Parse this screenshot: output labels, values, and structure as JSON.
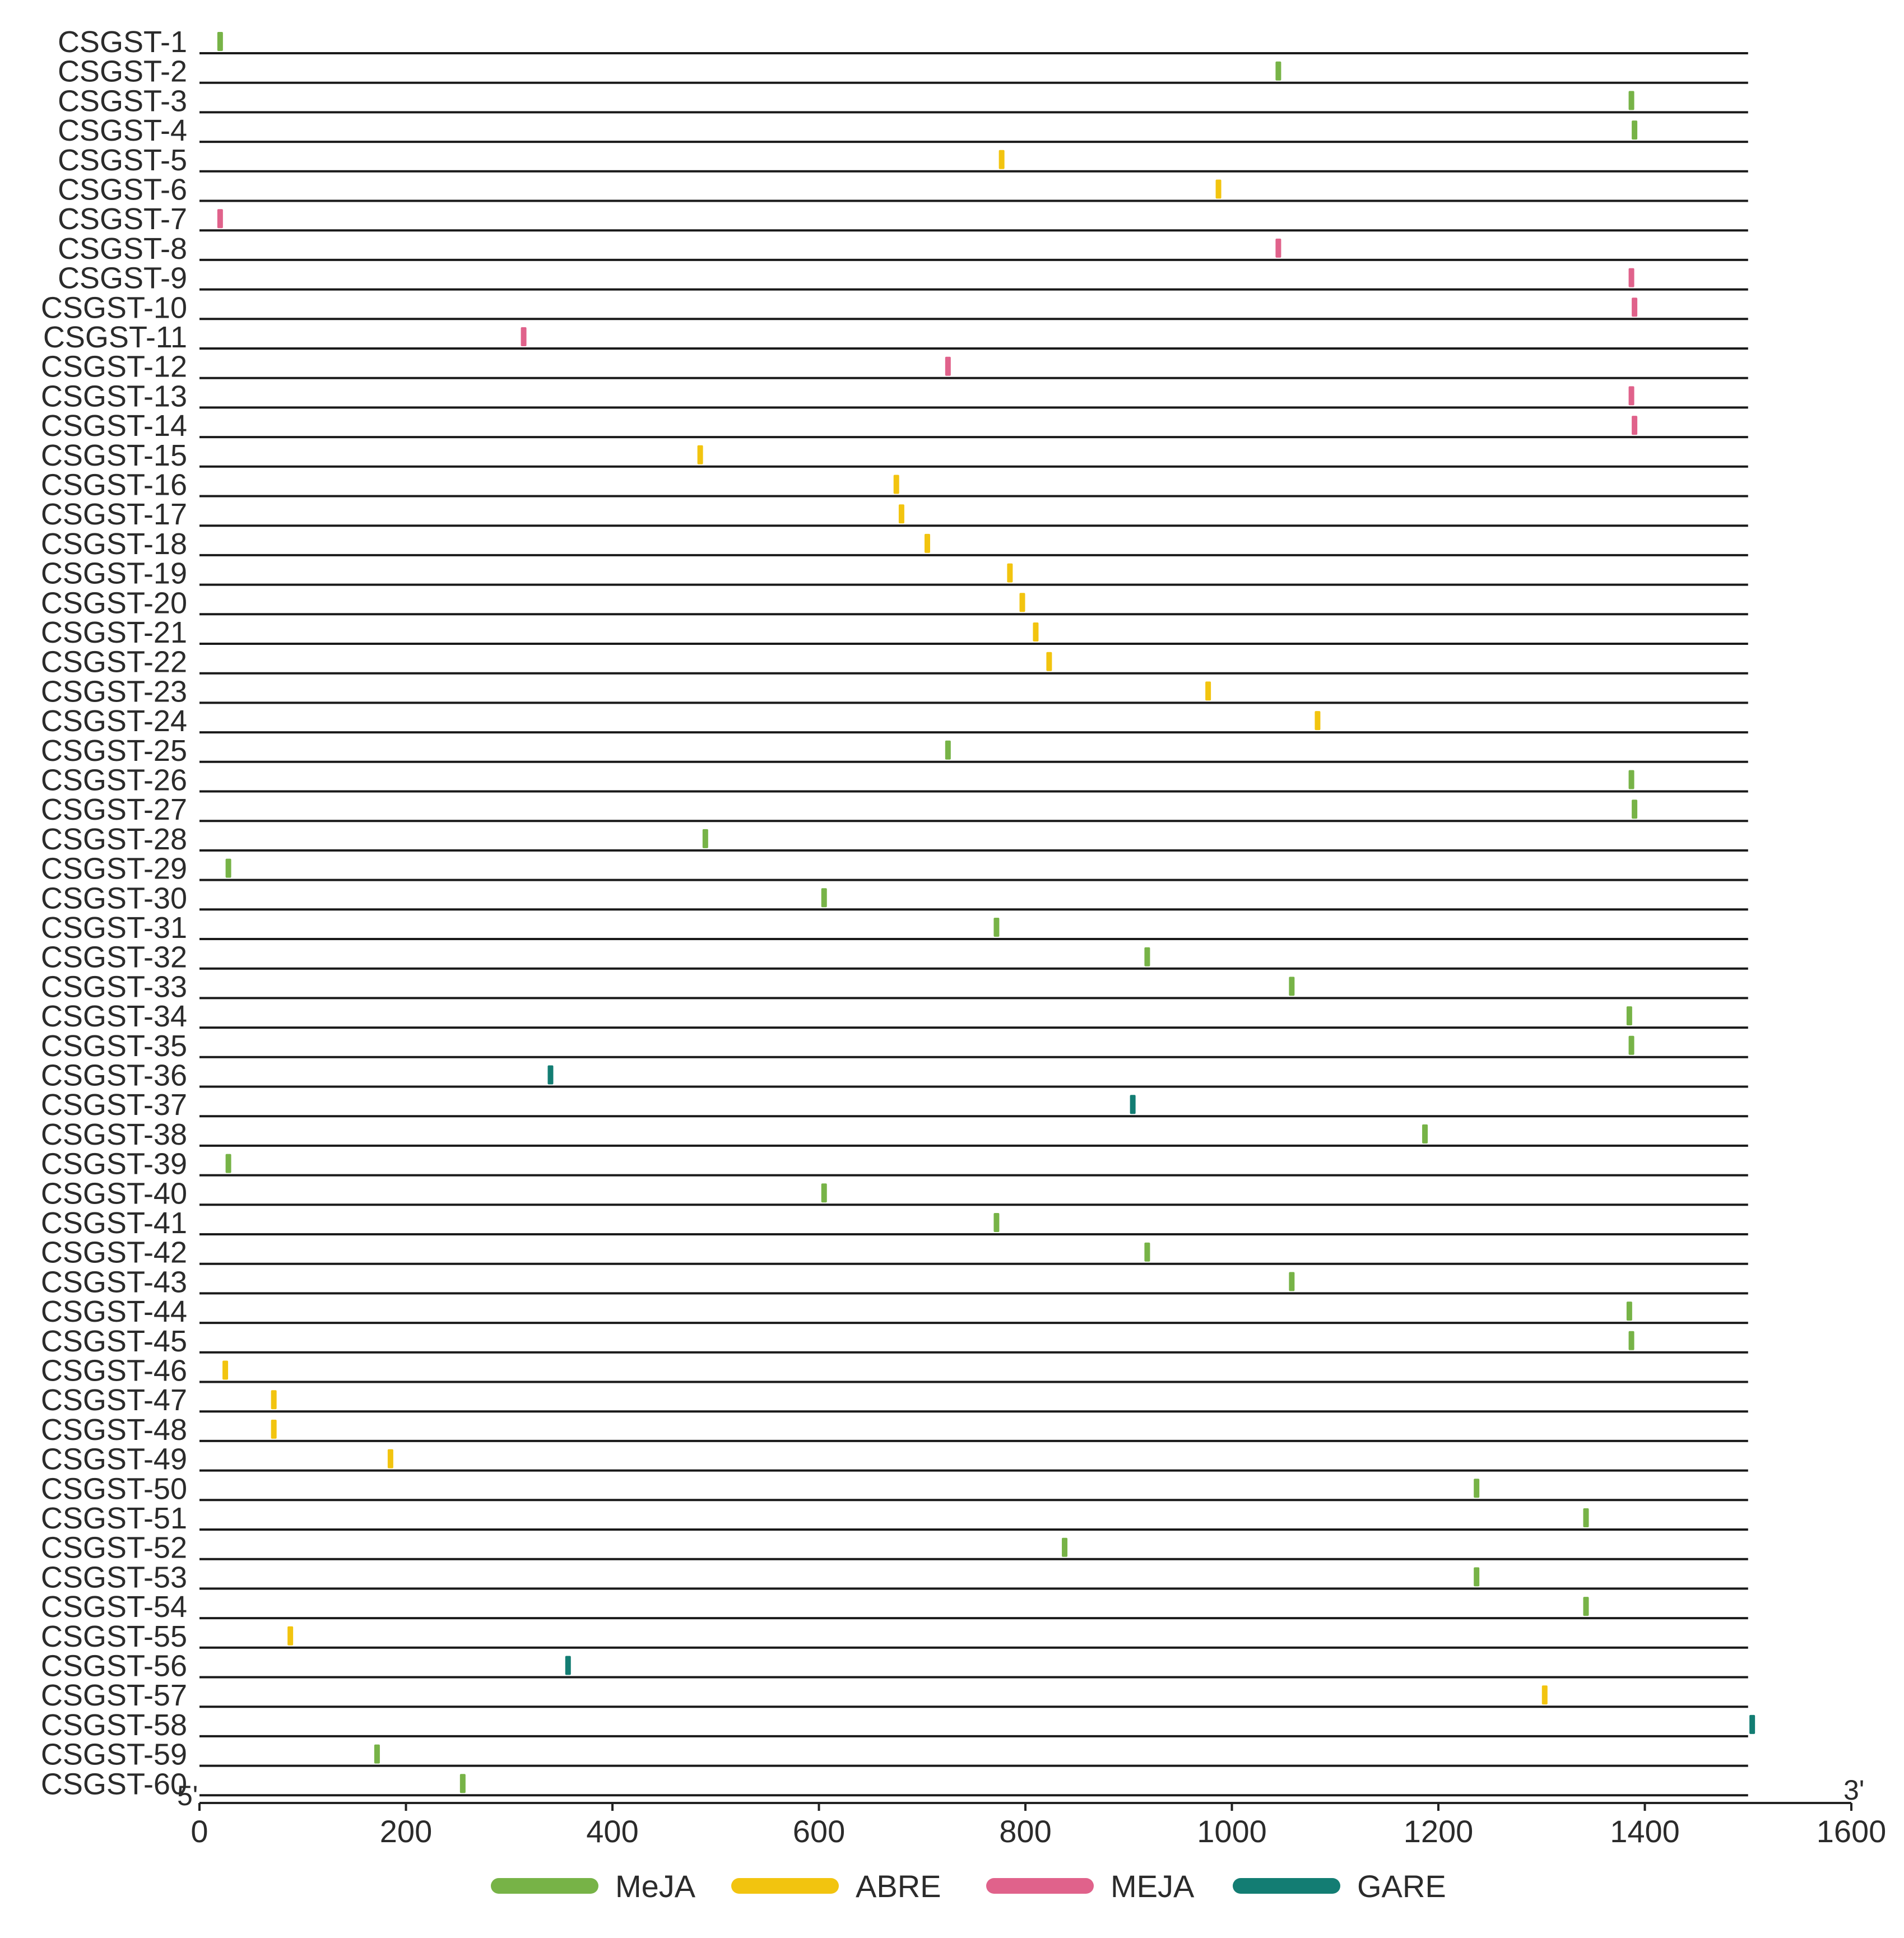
{
  "chart_data": {
    "type": "motif-map",
    "title": "",
    "xlabel": "",
    "ylabel": "",
    "xlim": [
      0,
      1600
    ],
    "x_ticks": [
      0,
      200,
      400,
      600,
      800,
      1000,
      1200,
      1400,
      1600
    ],
    "sequence_length": 1500,
    "end_labels": {
      "start": "5'",
      "end": "3'"
    },
    "legend_position": "bottom",
    "legend": [
      {
        "name": "MeJA",
        "color": "#77b347"
      },
      {
        "name": "ABRE",
        "color": "#f2c40f"
      },
      {
        "name": "MEJA",
        "color": "#e0628b"
      },
      {
        "name": "GARE",
        "color": "#137d73"
      }
    ],
    "genes": [
      {
        "name": "CSGST-1",
        "motifs": [
          {
            "type": "MeJA",
            "start": 20
          }
        ]
      },
      {
        "name": "CSGST-2",
        "motifs": [
          {
            "type": "MeJA",
            "start": 1045
          }
        ]
      },
      {
        "name": "CSGST-3",
        "motifs": [
          {
            "type": "MeJA",
            "start": 1387
          }
        ]
      },
      {
        "name": "CSGST-4",
        "motifs": [
          {
            "type": "MeJA",
            "start": 1390
          }
        ]
      },
      {
        "name": "CSGST-5",
        "motifs": [
          {
            "type": "ABRE",
            "start": 777
          }
        ]
      },
      {
        "name": "CSGST-6",
        "motifs": [
          {
            "type": "ABRE",
            "start": 987
          }
        ]
      },
      {
        "name": "CSGST-7",
        "motifs": [
          {
            "type": "MEJA",
            "start": 20
          }
        ]
      },
      {
        "name": "CSGST-8",
        "motifs": [
          {
            "type": "MEJA",
            "start": 1045
          }
        ]
      },
      {
        "name": "CSGST-9",
        "motifs": [
          {
            "type": "MEJA",
            "start": 1387
          }
        ]
      },
      {
        "name": "CSGST-10",
        "motifs": [
          {
            "type": "MEJA",
            "start": 1390
          }
        ]
      },
      {
        "name": "CSGST-11",
        "motifs": [
          {
            "type": "MEJA",
            "start": 314
          }
        ]
      },
      {
        "name": "CSGST-12",
        "motifs": [
          {
            "type": "MEJA",
            "start": 725
          }
        ]
      },
      {
        "name": "CSGST-13",
        "motifs": [
          {
            "type": "MEJA",
            "start": 1387
          }
        ]
      },
      {
        "name": "CSGST-14",
        "motifs": [
          {
            "type": "MEJA",
            "start": 1390
          }
        ]
      },
      {
        "name": "CSGST-15",
        "motifs": [
          {
            "type": "ABRE",
            "start": 485
          }
        ]
      },
      {
        "name": "CSGST-16",
        "motifs": [
          {
            "type": "ABRE",
            "start": 675
          }
        ]
      },
      {
        "name": "CSGST-17",
        "motifs": [
          {
            "type": "ABRE",
            "start": 680
          }
        ]
      },
      {
        "name": "CSGST-18",
        "motifs": [
          {
            "type": "ABRE",
            "start": 705
          }
        ]
      },
      {
        "name": "CSGST-19",
        "motifs": [
          {
            "type": "ABRE",
            "start": 785
          }
        ]
      },
      {
        "name": "CSGST-20",
        "motifs": [
          {
            "type": "ABRE",
            "start": 797
          }
        ]
      },
      {
        "name": "CSGST-21",
        "motifs": [
          {
            "type": "ABRE",
            "start": 810
          }
        ]
      },
      {
        "name": "CSGST-22",
        "motifs": [
          {
            "type": "ABRE",
            "start": 823
          }
        ]
      },
      {
        "name": "CSGST-23",
        "motifs": [
          {
            "type": "ABRE",
            "start": 977
          }
        ]
      },
      {
        "name": "CSGST-24",
        "motifs": [
          {
            "type": "ABRE",
            "start": 1083
          }
        ]
      },
      {
        "name": "CSGST-25",
        "motifs": [
          {
            "type": "MeJA",
            "start": 725
          }
        ]
      },
      {
        "name": "CSGST-26",
        "motifs": [
          {
            "type": "MeJA",
            "start": 1387
          }
        ]
      },
      {
        "name": "CSGST-27",
        "motifs": [
          {
            "type": "MeJA",
            "start": 1390
          }
        ]
      },
      {
        "name": "CSGST-28",
        "motifs": [
          {
            "type": "MeJA",
            "start": 490
          }
        ]
      },
      {
        "name": "CSGST-29",
        "motifs": [
          {
            "type": "MeJA",
            "start": 28
          }
        ]
      },
      {
        "name": "CSGST-30",
        "motifs": [
          {
            "type": "MeJA",
            "start": 605
          }
        ]
      },
      {
        "name": "CSGST-31",
        "motifs": [
          {
            "type": "MeJA",
            "start": 772
          }
        ]
      },
      {
        "name": "CSGST-32",
        "motifs": [
          {
            "type": "MeJA",
            "start": 918
          }
        ]
      },
      {
        "name": "CSGST-33",
        "motifs": [
          {
            "type": "MeJA",
            "start": 1058
          }
        ]
      },
      {
        "name": "CSGST-34",
        "motifs": [
          {
            "type": "MeJA",
            "start": 1385
          }
        ]
      },
      {
        "name": "CSGST-35",
        "motifs": [
          {
            "type": "MeJA",
            "start": 1387
          }
        ]
      },
      {
        "name": "CSGST-36",
        "motifs": [
          {
            "type": "GARE",
            "start": 340
          }
        ]
      },
      {
        "name": "CSGST-37",
        "motifs": [
          {
            "type": "GARE",
            "start": 904
          }
        ]
      },
      {
        "name": "CSGST-38",
        "motifs": [
          {
            "type": "MeJA",
            "start": 1187
          }
        ]
      },
      {
        "name": "CSGST-39",
        "motifs": [
          {
            "type": "MeJA",
            "start": 28
          }
        ]
      },
      {
        "name": "CSGST-40",
        "motifs": [
          {
            "type": "MeJA",
            "start": 605
          }
        ]
      },
      {
        "name": "CSGST-41",
        "motifs": [
          {
            "type": "MeJA",
            "start": 772
          }
        ]
      },
      {
        "name": "CSGST-42",
        "motifs": [
          {
            "type": "MeJA",
            "start": 918
          }
        ]
      },
      {
        "name": "CSGST-43",
        "motifs": [
          {
            "type": "MeJA",
            "start": 1058
          }
        ]
      },
      {
        "name": "CSGST-44",
        "motifs": [
          {
            "type": "MeJA",
            "start": 1385
          }
        ]
      },
      {
        "name": "CSGST-45",
        "motifs": [
          {
            "type": "MeJA",
            "start": 1387
          }
        ]
      },
      {
        "name": "CSGST-46",
        "motifs": [
          {
            "type": "ABRE",
            "start": 25
          }
        ]
      },
      {
        "name": "CSGST-47",
        "motifs": [
          {
            "type": "ABRE",
            "start": 72
          }
        ]
      },
      {
        "name": "CSGST-48",
        "motifs": [
          {
            "type": "ABRE",
            "start": 72
          }
        ]
      },
      {
        "name": "CSGST-49",
        "motifs": [
          {
            "type": "ABRE",
            "start": 185
          }
        ]
      },
      {
        "name": "CSGST-50",
        "motifs": [
          {
            "type": "MeJA",
            "start": 1237
          }
        ]
      },
      {
        "name": "CSGST-51",
        "motifs": [
          {
            "type": "MeJA",
            "start": 1343
          }
        ]
      },
      {
        "name": "CSGST-52",
        "motifs": [
          {
            "type": "MeJA",
            "start": 838
          }
        ]
      },
      {
        "name": "CSGST-53",
        "motifs": [
          {
            "type": "MeJA",
            "start": 1237
          }
        ]
      },
      {
        "name": "CSGST-54",
        "motifs": [
          {
            "type": "MeJA",
            "start": 1343
          }
        ]
      },
      {
        "name": "CSGST-55",
        "motifs": [
          {
            "type": "ABRE",
            "start": 88
          }
        ]
      },
      {
        "name": "CSGST-56",
        "motifs": [
          {
            "type": "GARE",
            "start": 357
          }
        ]
      },
      {
        "name": "CSGST-57",
        "motifs": [
          {
            "type": "ABRE",
            "start": 1303
          }
        ]
      },
      {
        "name": "CSGST-58",
        "motifs": [
          {
            "type": "GARE",
            "start": 1504
          }
        ]
      },
      {
        "name": "CSGST-59",
        "motifs": [
          {
            "type": "MeJA",
            "start": 172
          }
        ]
      },
      {
        "name": "CSGST-60",
        "motifs": [
          {
            "type": "MeJA",
            "start": 255
          }
        ]
      }
    ]
  }
}
